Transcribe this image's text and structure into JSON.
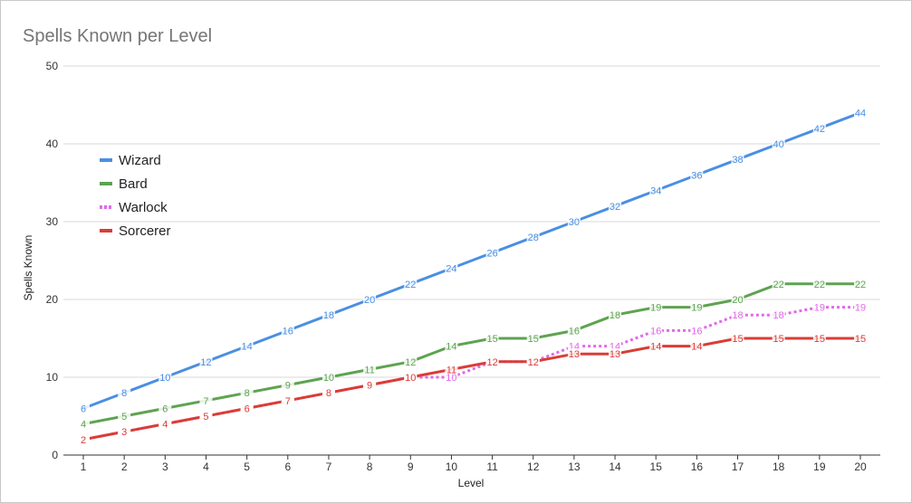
{
  "chart_data": {
    "type": "line",
    "title": "Spells Known per Level",
    "xlabel": "Level",
    "ylabel": "Spells Known",
    "x": [
      1,
      2,
      3,
      4,
      5,
      6,
      7,
      8,
      9,
      10,
      11,
      12,
      13,
      14,
      15,
      16,
      17,
      18,
      19,
      20
    ],
    "ylim": [
      0,
      50
    ],
    "yticks": [
      0,
      10,
      20,
      30,
      40,
      50
    ],
    "grid": true,
    "legend_position": "left",
    "series": [
      {
        "name": "Wizard",
        "color": "#4a8fe2",
        "style": "solid",
        "values": [
          6,
          8,
          10,
          12,
          14,
          16,
          18,
          20,
          22,
          24,
          26,
          28,
          30,
          32,
          34,
          36,
          38,
          40,
          42,
          44
        ]
      },
      {
        "name": "Bard",
        "color": "#5ea350",
        "style": "solid",
        "values": [
          4,
          5,
          6,
          7,
          8,
          9,
          10,
          11,
          12,
          14,
          15,
          15,
          16,
          18,
          19,
          19,
          20,
          22,
          22,
          22
        ]
      },
      {
        "name": "Warlock",
        "color": "#e069ea",
        "style": "dotted",
        "values": [
          2,
          3,
          4,
          5,
          6,
          7,
          8,
          9,
          10,
          10,
          12,
          12,
          14,
          14,
          16,
          16,
          18,
          18,
          19,
          19
        ]
      },
      {
        "name": "Sorcerer",
        "color": "#db3c36",
        "style": "solid",
        "values": [
          2,
          3,
          4,
          5,
          6,
          7,
          8,
          9,
          10,
          11,
          12,
          12,
          13,
          13,
          14,
          14,
          15,
          15,
          15,
          15
        ]
      }
    ]
  }
}
